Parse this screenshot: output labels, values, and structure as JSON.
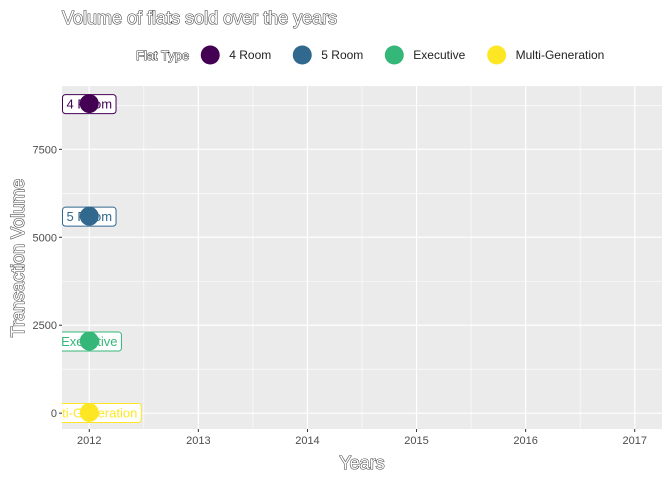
{
  "chart_data": {
    "type": "scatter",
    "title": "Volume of flats sold over the years",
    "xlabel": "Years",
    "ylabel": "Transaction Volume",
    "xlim": [
      2011.75,
      2017.25
    ],
    "ylim": [
      -450,
      9300
    ],
    "x_ticks": [
      2012,
      2013,
      2014,
      2015,
      2016,
      2017
    ],
    "y_ticks": [
      0,
      2500,
      5000,
      7500
    ],
    "x_tick_labels": [
      "2012",
      "2013",
      "2014",
      "2015",
      "2016",
      "2017"
    ],
    "y_tick_labels": [
      "0",
      "2500",
      "5000",
      "7500"
    ],
    "grid": true,
    "legend": {
      "title": "Flat Type",
      "placement": "top"
    },
    "series": [
      {
        "name": "4 Room",
        "label": "4 Room",
        "color": "#440154",
        "x": [
          2012
        ],
        "y": [
          8800
        ]
      },
      {
        "name": "5 Room",
        "label": "5 Room",
        "color": "#31688E",
        "x": [
          2012
        ],
        "y": [
          5600
        ]
      },
      {
        "name": "Executive",
        "label": "Executive",
        "color": "#35B779",
        "x": [
          2012
        ],
        "y": [
          2050
        ]
      },
      {
        "name": "Multi-Generation",
        "label": "Multi-Generation",
        "color": "#FDE725",
        "x": [
          2012
        ],
        "y": [
          20
        ]
      }
    ]
  }
}
